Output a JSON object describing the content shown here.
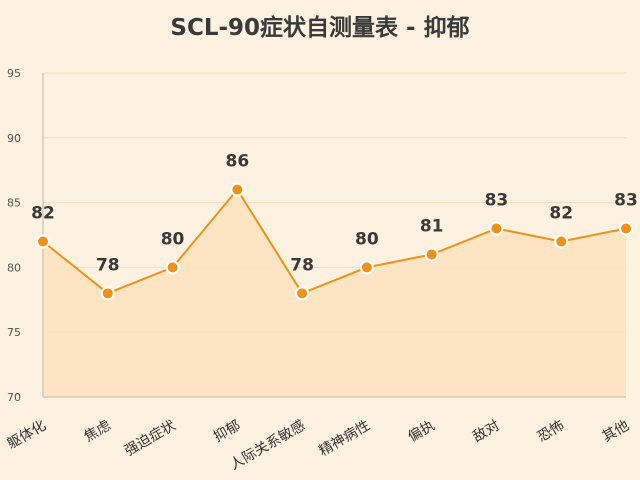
{
  "colors": {
    "background": "#fdf1df",
    "line": "#f0921a",
    "area": "#fde3bf",
    "marker_fill": "#f0921a",
    "marker_stroke": "#ffffff",
    "grid": "#f3dcbe"
  },
  "chart_data": {
    "type": "line",
    "title": "SCL-90症状自测量表 - 抑郁",
    "xlabel": "",
    "ylabel": "",
    "ylim": [
      70,
      95
    ],
    "yticks": [
      70,
      75,
      80,
      85,
      90,
      95
    ],
    "grid": true,
    "filled_area": true,
    "categories": [
      "躯体化",
      "焦虑",
      "强迫症状",
      "抑郁",
      "人际关系敏感",
      "精神病性",
      "偏执",
      "敌对",
      "恐怖",
      "其他"
    ],
    "series": [
      {
        "values": [
          82,
          78,
          80,
          86,
          78,
          80,
          81,
          83,
          82,
          83
        ]
      }
    ]
  }
}
